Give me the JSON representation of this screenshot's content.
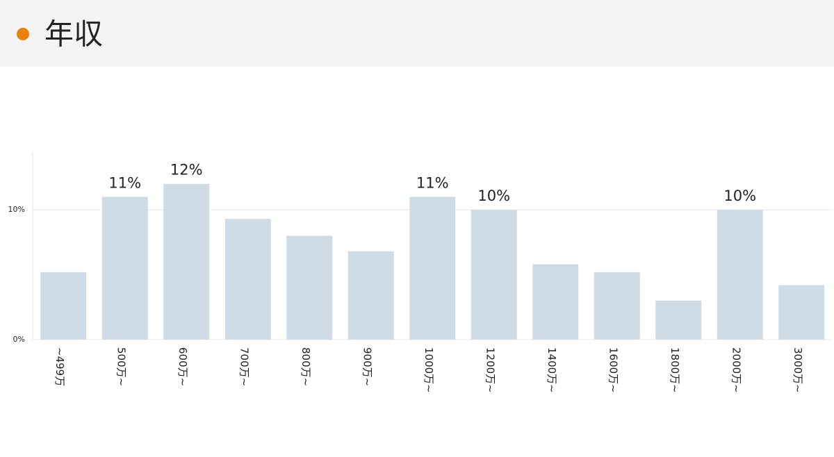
{
  "header": {
    "title": "年収"
  },
  "chart_data": {
    "type": "bar",
    "categories": [
      "~499万",
      "500万~",
      "600万~",
      "700万~",
      "800万~",
      "900万~",
      "1000万~",
      "1200万~",
      "1400万~",
      "1600万~",
      "1800万~",
      "2000万~",
      "3000万~"
    ],
    "values": [
      5.2,
      11,
      12,
      9.3,
      8.0,
      6.8,
      11,
      10,
      5.8,
      5.2,
      3.0,
      10,
      4.2
    ],
    "value_labels": [
      null,
      "11%",
      "12%",
      null,
      null,
      null,
      "11%",
      "10%",
      null,
      null,
      null,
      "10%",
      null
    ],
    "color": "#d0dce5",
    "ylim": [
      0,
      14.5
    ],
    "yticks": [
      {
        "value": 0,
        "label": "0%"
      },
      {
        "value": 10,
        "label": "10%"
      }
    ],
    "grid": true
  }
}
